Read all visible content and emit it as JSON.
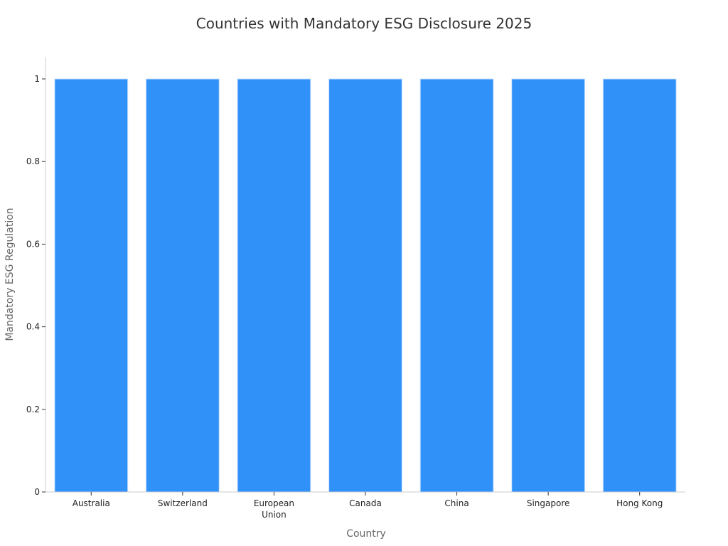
{
  "chart_data": {
    "type": "bar",
    "title": "Countries with Mandatory ESG Disclosure 2025",
    "xlabel": "Country",
    "ylabel": "Mandatory ESG Regulation",
    "categories": [
      "Australia",
      "Switzerland",
      "European Union",
      "Canada",
      "China",
      "Singapore",
      "Hong Kong"
    ],
    "values": [
      1,
      1,
      1,
      1,
      1,
      1,
      1
    ],
    "ylim": [
      0,
      1
    ],
    "yticks": [
      0,
      0.2,
      0.4,
      0.6,
      0.8,
      1
    ],
    "ytick_labels": [
      "0",
      "0.2",
      "0.4",
      "0.6",
      "0.8",
      "1"
    ],
    "bar_color": "#3091f9",
    "grid": false,
    "legend": "none"
  }
}
